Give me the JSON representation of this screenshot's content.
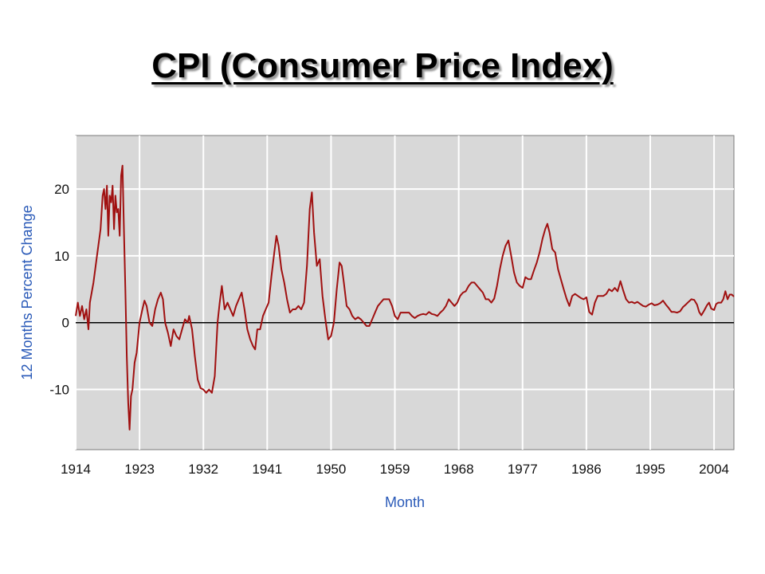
{
  "page": {
    "title": "CPI (Consumer Price Index)"
  },
  "colors": {
    "plot_background": "#d8d8d8",
    "grid": "#ffffff",
    "series_line": "#a01010",
    "zero_line": "#000000",
    "axis_title": "#2a5ab8"
  },
  "chart_data": {
    "type": "line",
    "title": "CPI (Consumer Price Index)",
    "xlabel": "Month",
    "ylabel": "12 Months Percent Change",
    "xlim": [
      1914,
      2006.8
    ],
    "ylim": [
      -19,
      28
    ],
    "grid": true,
    "x_ticks": [
      1914,
      1923,
      1932,
      1941,
      1950,
      1959,
      1968,
      1977,
      1986,
      1995,
      2004
    ],
    "y_ticks": [
      -10,
      0,
      10,
      20
    ],
    "series": [
      {
        "values": [
          [
            1914.0,
            1.0
          ],
          [
            1914.3,
            3.0
          ],
          [
            1914.6,
            1.0
          ],
          [
            1914.9,
            2.5
          ],
          [
            1915.2,
            0.5
          ],
          [
            1915.5,
            2.0
          ],
          [
            1915.8,
            -1.0
          ],
          [
            1916.0,
            3.0
          ],
          [
            1916.5,
            6.0
          ],
          [
            1917.0,
            10.0
          ],
          [
            1917.5,
            14.0
          ],
          [
            1917.8,
            19.0
          ],
          [
            1918.0,
            20.0
          ],
          [
            1918.2,
            17.0
          ],
          [
            1918.4,
            20.5
          ],
          [
            1918.6,
            13.0
          ],
          [
            1918.8,
            19.0
          ],
          [
            1919.0,
            18.0
          ],
          [
            1919.2,
            20.5
          ],
          [
            1919.4,
            14.0
          ],
          [
            1919.6,
            19.0
          ],
          [
            1919.8,
            16.5
          ],
          [
            1920.0,
            17.0
          ],
          [
            1920.2,
            13.0
          ],
          [
            1920.4,
            22.0
          ],
          [
            1920.6,
            23.5
          ],
          [
            1920.8,
            14.0
          ],
          [
            1921.0,
            5.0
          ],
          [
            1921.2,
            -5.0
          ],
          [
            1921.4,
            -12.0
          ],
          [
            1921.6,
            -16.0
          ],
          [
            1921.8,
            -11.0
          ],
          [
            1922.0,
            -10.0
          ],
          [
            1922.3,
            -6.0
          ],
          [
            1922.6,
            -4.5
          ],
          [
            1923.0,
            0.0
          ],
          [
            1923.4,
            2.0
          ],
          [
            1923.7,
            3.3
          ],
          [
            1924.0,
            2.5
          ],
          [
            1924.4,
            0.0
          ],
          [
            1924.8,
            -0.5
          ],
          [
            1925.2,
            2.0
          ],
          [
            1925.6,
            3.5
          ],
          [
            1926.0,
            4.5
          ],
          [
            1926.3,
            3.5
          ],
          [
            1926.6,
            0.0
          ],
          [
            1927.0,
            -1.5
          ],
          [
            1927.4,
            -3.5
          ],
          [
            1927.8,
            -1.0
          ],
          [
            1928.2,
            -2.0
          ],
          [
            1928.6,
            -2.5
          ],
          [
            1929.0,
            -1.0
          ],
          [
            1929.4,
            0.5
          ],
          [
            1929.8,
            0.0
          ],
          [
            1930.0,
            1.0
          ],
          [
            1930.4,
            -1.0
          ],
          [
            1930.8,
            -5.0
          ],
          [
            1931.2,
            -8.5
          ],
          [
            1931.6,
            -9.8
          ],
          [
            1932.0,
            -10.0
          ],
          [
            1932.4,
            -10.5
          ],
          [
            1932.8,
            -10.0
          ],
          [
            1933.2,
            -10.5
          ],
          [
            1933.6,
            -8.0
          ],
          [
            1934.0,
            0.0
          ],
          [
            1934.3,
            3.0
          ],
          [
            1934.6,
            5.5
          ],
          [
            1935.0,
            2.0
          ],
          [
            1935.4,
            3.0
          ],
          [
            1935.8,
            2.0
          ],
          [
            1936.2,
            1.0
          ],
          [
            1936.6,
            2.5
          ],
          [
            1937.0,
            3.5
          ],
          [
            1937.4,
            4.5
          ],
          [
            1937.8,
            2.0
          ],
          [
            1938.2,
            -1.0
          ],
          [
            1938.6,
            -2.5
          ],
          [
            1939.0,
            -3.5
          ],
          [
            1939.3,
            -4.0
          ],
          [
            1939.6,
            -1.0
          ],
          [
            1940.0,
            -1.0
          ],
          [
            1940.4,
            1.0
          ],
          [
            1940.8,
            2.0
          ],
          [
            1941.2,
            3.0
          ],
          [
            1941.6,
            7.0
          ],
          [
            1942.0,
            10.5
          ],
          [
            1942.3,
            13.0
          ],
          [
            1942.6,
            11.5
          ],
          [
            1943.0,
            8.0
          ],
          [
            1943.4,
            6.0
          ],
          [
            1943.8,
            3.5
          ],
          [
            1944.2,
            1.5
          ],
          [
            1944.6,
            2.0
          ],
          [
            1945.0,
            2.0
          ],
          [
            1945.4,
            2.5
          ],
          [
            1945.8,
            2.0
          ],
          [
            1946.2,
            3.0
          ],
          [
            1946.6,
            8.5
          ],
          [
            1947.0,
            17.0
          ],
          [
            1947.3,
            19.5
          ],
          [
            1947.6,
            13.5
          ],
          [
            1948.0,
            8.5
          ],
          [
            1948.4,
            9.5
          ],
          [
            1948.8,
            4.0
          ],
          [
            1949.2,
            0.5
          ],
          [
            1949.6,
            -2.5
          ],
          [
            1950.0,
            -2.0
          ],
          [
            1950.4,
            0.0
          ],
          [
            1950.8,
            5.0
          ],
          [
            1951.2,
            9.0
          ],
          [
            1951.5,
            8.5
          ],
          [
            1951.8,
            6.0
          ],
          [
            1952.2,
            2.5
          ],
          [
            1952.6,
            2.0
          ],
          [
            1953.0,
            1.0
          ],
          [
            1953.4,
            0.5
          ],
          [
            1953.8,
            0.8
          ],
          [
            1954.2,
            0.5
          ],
          [
            1954.6,
            0.0
          ],
          [
            1955.0,
            -0.5
          ],
          [
            1955.4,
            -0.5
          ],
          [
            1955.8,
            0.5
          ],
          [
            1956.2,
            1.5
          ],
          [
            1956.6,
            2.5
          ],
          [
            1957.0,
            3.0
          ],
          [
            1957.4,
            3.5
          ],
          [
            1957.8,
            3.5
          ],
          [
            1958.2,
            3.5
          ],
          [
            1958.6,
            2.5
          ],
          [
            1959.0,
            1.0
          ],
          [
            1959.4,
            0.5
          ],
          [
            1959.8,
            1.5
          ],
          [
            1960.2,
            1.5
          ],
          [
            1960.6,
            1.5
          ],
          [
            1961.0,
            1.5
          ],
          [
            1961.4,
            1.0
          ],
          [
            1961.8,
            0.7
          ],
          [
            1962.2,
            1.0
          ],
          [
            1962.6,
            1.2
          ],
          [
            1963.0,
            1.3
          ],
          [
            1963.4,
            1.2
          ],
          [
            1963.8,
            1.6
          ],
          [
            1964.2,
            1.3
          ],
          [
            1964.6,
            1.2
          ],
          [
            1965.0,
            1.0
          ],
          [
            1965.4,
            1.5
          ],
          [
            1965.8,
            1.9
          ],
          [
            1966.2,
            2.5
          ],
          [
            1966.6,
            3.5
          ],
          [
            1967.0,
            3.0
          ],
          [
            1967.4,
            2.5
          ],
          [
            1967.8,
            3.0
          ],
          [
            1968.2,
            4.0
          ],
          [
            1968.6,
            4.5
          ],
          [
            1969.0,
            4.7
          ],
          [
            1969.4,
            5.5
          ],
          [
            1969.8,
            6.0
          ],
          [
            1970.2,
            6.0
          ],
          [
            1970.6,
            5.5
          ],
          [
            1971.0,
            5.0
          ],
          [
            1971.4,
            4.5
          ],
          [
            1971.8,
            3.5
          ],
          [
            1972.2,
            3.5
          ],
          [
            1972.6,
            3.0
          ],
          [
            1973.0,
            3.6
          ],
          [
            1973.4,
            5.5
          ],
          [
            1973.8,
            8.0
          ],
          [
            1974.2,
            10.0
          ],
          [
            1974.6,
            11.5
          ],
          [
            1975.0,
            12.3
          ],
          [
            1975.4,
            10.0
          ],
          [
            1975.8,
            7.5
          ],
          [
            1976.2,
            6.0
          ],
          [
            1976.6,
            5.5
          ],
          [
            1977.0,
            5.2
          ],
          [
            1977.4,
            6.8
          ],
          [
            1977.8,
            6.5
          ],
          [
            1978.2,
            6.5
          ],
          [
            1978.6,
            7.8
          ],
          [
            1979.0,
            9.0
          ],
          [
            1979.4,
            10.5
          ],
          [
            1979.8,
            12.5
          ],
          [
            1980.2,
            14.0
          ],
          [
            1980.5,
            14.8
          ],
          [
            1980.8,
            13.5
          ],
          [
            1981.2,
            11.0
          ],
          [
            1981.6,
            10.5
          ],
          [
            1982.0,
            8.0
          ],
          [
            1982.4,
            6.5
          ],
          [
            1982.8,
            5.0
          ],
          [
            1983.2,
            3.6
          ],
          [
            1983.6,
            2.5
          ],
          [
            1984.0,
            4.0
          ],
          [
            1984.4,
            4.3
          ],
          [
            1984.8,
            4.0
          ],
          [
            1985.2,
            3.7
          ],
          [
            1985.6,
            3.5
          ],
          [
            1986.0,
            3.8
          ],
          [
            1986.4,
            1.6
          ],
          [
            1986.8,
            1.2
          ],
          [
            1987.2,
            3.0
          ],
          [
            1987.6,
            4.0
          ],
          [
            1988.0,
            4.0
          ],
          [
            1988.4,
            4.0
          ],
          [
            1988.8,
            4.3
          ],
          [
            1989.2,
            5.0
          ],
          [
            1989.6,
            4.7
          ],
          [
            1990.0,
            5.2
          ],
          [
            1990.4,
            4.7
          ],
          [
            1990.8,
            6.2
          ],
          [
            1991.2,
            4.8
          ],
          [
            1991.6,
            3.5
          ],
          [
            1992.0,
            3.0
          ],
          [
            1992.4,
            3.1
          ],
          [
            1992.8,
            2.9
          ],
          [
            1993.2,
            3.1
          ],
          [
            1993.6,
            2.8
          ],
          [
            1994.0,
            2.5
          ],
          [
            1994.4,
            2.4
          ],
          [
            1994.8,
            2.7
          ],
          [
            1995.2,
            2.9
          ],
          [
            1995.6,
            2.6
          ],
          [
            1996.0,
            2.7
          ],
          [
            1996.4,
            2.9
          ],
          [
            1996.8,
            3.3
          ],
          [
            1997.2,
            2.7
          ],
          [
            1997.6,
            2.2
          ],
          [
            1998.0,
            1.6
          ],
          [
            1998.4,
            1.6
          ],
          [
            1998.8,
            1.5
          ],
          [
            1999.2,
            1.7
          ],
          [
            1999.6,
            2.3
          ],
          [
            2000.0,
            2.7
          ],
          [
            2000.4,
            3.1
          ],
          [
            2000.8,
            3.5
          ],
          [
            2001.2,
            3.4
          ],
          [
            2001.6,
            2.7
          ],
          [
            2001.9,
            1.6
          ],
          [
            2002.2,
            1.1
          ],
          [
            2002.6,
            1.8
          ],
          [
            2003.0,
            2.6
          ],
          [
            2003.3,
            3.0
          ],
          [
            2003.6,
            2.1
          ],
          [
            2004.0,
            1.9
          ],
          [
            2004.3,
            2.8
          ],
          [
            2004.6,
            3.0
          ],
          [
            2005.0,
            3.0
          ],
          [
            2005.3,
            3.5
          ],
          [
            2005.6,
            4.7
          ],
          [
            2005.9,
            3.5
          ],
          [
            2006.2,
            4.2
          ],
          [
            2006.5,
            4.2
          ],
          [
            2006.8,
            3.9
          ]
        ]
      }
    ]
  }
}
